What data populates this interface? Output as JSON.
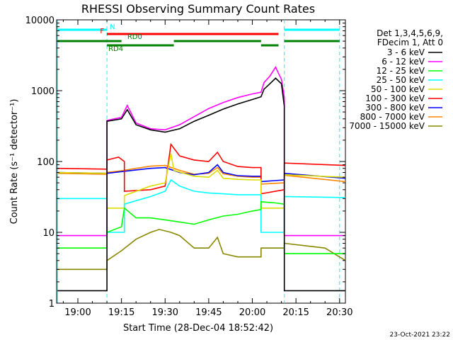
{
  "chart_data": {
    "type": "line",
    "title": "RHESSI Observing Summary Count Rates",
    "xlabel": "Start Time (28-Dec-04 18:52:42)",
    "ylabel": "Count Rate (s⁻¹ detector⁻¹)",
    "y_scale": "log",
    "ylim": [
      1,
      10000
    ],
    "xlim": [
      "18:52:42",
      "20:32:00"
    ],
    "x_ticks": [
      "19:00",
      "19:15",
      "19:30",
      "19:45",
      "20:00",
      "20:15",
      "20:30"
    ],
    "y_ticks": [
      "1",
      "10",
      "100",
      "1000",
      "10000"
    ],
    "grid": false,
    "legend_position": "right",
    "legend_header": [
      "Det 1,3,4,5,6,9,",
      "FDecim 1, Att 0"
    ],
    "date_stamp": "23-Oct-2021 23:22",
    "series": [
      {
        "name": "3 - 6 keV",
        "color": "#000000",
        "points": [
          [
            "18:53",
            1.5
          ],
          [
            "19:10",
            1.5
          ],
          [
            "19:10",
            370
          ],
          [
            "19:15",
            400
          ],
          [
            "19:17",
            540
          ],
          [
            "19:20",
            330
          ],
          [
            "19:25",
            280
          ],
          [
            "19:30",
            260
          ],
          [
            "19:35",
            290
          ],
          [
            "19:40",
            370
          ],
          [
            "19:45",
            450
          ],
          [
            "19:50",
            550
          ],
          [
            "19:55",
            650
          ],
          [
            "20:00",
            750
          ],
          [
            "20:03",
            820
          ],
          [
            "20:04",
            1050
          ],
          [
            "20:06",
            1250
          ],
          [
            "20:08",
            1500
          ],
          [
            "20:10",
            1250
          ],
          [
            "20:11",
            600
          ],
          [
            "20:11",
            1.5
          ],
          [
            "20:32",
            1.5
          ]
        ]
      },
      {
        "name": "6 - 12 keV",
        "color": "#ff00ff",
        "points": [
          [
            "18:53",
            9
          ],
          [
            "19:10",
            9
          ],
          [
            "19:10",
            380
          ],
          [
            "19:15",
            420
          ],
          [
            "19:17",
            620
          ],
          [
            "19:20",
            350
          ],
          [
            "19:25",
            290
          ],
          [
            "19:30",
            280
          ],
          [
            "19:35",
            330
          ],
          [
            "19:40",
            430
          ],
          [
            "19:45",
            560
          ],
          [
            "19:50",
            680
          ],
          [
            "19:55",
            800
          ],
          [
            "20:00",
            900
          ],
          [
            "20:03",
            950
          ],
          [
            "20:04",
            1300
          ],
          [
            "20:06",
            1600
          ],
          [
            "20:08",
            2150
          ],
          [
            "20:09",
            1750
          ],
          [
            "20:10",
            1450
          ],
          [
            "20:11",
            800
          ],
          [
            "20:11",
            9
          ],
          [
            "20:32",
            9
          ]
        ]
      },
      {
        "name": "12 - 25 keV",
        "color": "#00ff00",
        "points": [
          [
            "18:53",
            6
          ],
          [
            "19:10",
            6
          ],
          [
            "19:10",
            10
          ],
          [
            "19:15",
            12
          ],
          [
            "19:16",
            22
          ],
          [
            "19:20",
            16
          ],
          [
            "19:25",
            16
          ],
          [
            "19:30",
            15
          ],
          [
            "19:35",
            14
          ],
          [
            "19:40",
            13
          ],
          [
            "19:45",
            15
          ],
          [
            "19:50",
            17
          ],
          [
            "19:55",
            18
          ],
          [
            "20:00",
            20
          ],
          [
            "20:03",
            21
          ],
          [
            "20:03",
            27
          ],
          [
            "20:08",
            26
          ],
          [
            "20:11",
            25
          ],
          [
            "20:11",
            5
          ],
          [
            "20:32",
            5
          ]
        ]
      },
      {
        "name": "25 - 50 keV",
        "color": "#00ffff",
        "points": [
          [
            "18:53",
            30
          ],
          [
            "19:10",
            30
          ],
          [
            "19:10",
            10
          ],
          [
            "19:16",
            10
          ],
          [
            "19:16",
            25
          ],
          [
            "19:20",
            28
          ],
          [
            "19:25",
            32
          ],
          [
            "19:30",
            38
          ],
          [
            "19:32",
            55
          ],
          [
            "19:35",
            45
          ],
          [
            "19:40",
            38
          ],
          [
            "19:45",
            36
          ],
          [
            "19:50",
            35
          ],
          [
            "19:55",
            34
          ],
          [
            "20:00",
            34
          ],
          [
            "20:03",
            34
          ],
          [
            "20:03",
            10
          ],
          [
            "20:11",
            10
          ],
          [
            "20:11",
            32
          ],
          [
            "20:32",
            31
          ]
        ]
      },
      {
        "name": "50 - 100 keV",
        "color": "#dddd00",
        "points": [
          [
            "18:53",
            70
          ],
          [
            "19:10",
            68
          ],
          [
            "19:10",
            22
          ],
          [
            "19:16",
            22
          ],
          [
            "19:16",
            33
          ],
          [
            "19:25",
            45
          ],
          [
            "19:30",
            50
          ],
          [
            "19:32",
            130
          ],
          [
            "19:33",
            75
          ],
          [
            "19:40",
            62
          ],
          [
            "19:45",
            60
          ],
          [
            "19:48",
            75
          ],
          [
            "19:50",
            58
          ],
          [
            "19:55",
            56
          ],
          [
            "20:00",
            55
          ],
          [
            "20:03",
            55
          ],
          [
            "20:03",
            22
          ],
          [
            "20:11",
            22
          ],
          [
            "20:11",
            65
          ],
          [
            "20:32",
            60
          ]
        ]
      },
      {
        "name": "100 - 300 keV",
        "color": "#ff0000",
        "points": [
          [
            "18:53",
            80
          ],
          [
            "19:10",
            78
          ],
          [
            "19:10",
            105
          ],
          [
            "19:14",
            115
          ],
          [
            "19:16",
            100
          ],
          [
            "19:16",
            38
          ],
          [
            "19:25",
            40
          ],
          [
            "19:30",
            45
          ],
          [
            "19:32",
            175
          ],
          [
            "19:35",
            120
          ],
          [
            "19:40",
            105
          ],
          [
            "19:45",
            100
          ],
          [
            "19:48",
            135
          ],
          [
            "19:50",
            100
          ],
          [
            "19:55",
            85
          ],
          [
            "20:00",
            82
          ],
          [
            "20:03",
            82
          ],
          [
            "20:03",
            35
          ],
          [
            "20:11",
            40
          ],
          [
            "20:11",
            95
          ],
          [
            "20:32",
            88
          ]
        ]
      },
      {
        "name": "300 - 800 keV",
        "color": "#0000ff",
        "points": [
          [
            "18:53",
            70
          ],
          [
            "19:10",
            68
          ],
          [
            "19:10",
            68
          ],
          [
            "19:15",
            72
          ],
          [
            "19:20",
            76
          ],
          [
            "19:25",
            80
          ],
          [
            "19:30",
            82
          ],
          [
            "19:35",
            70
          ],
          [
            "19:40",
            65
          ],
          [
            "19:45",
            70
          ],
          [
            "19:48",
            90
          ],
          [
            "19:50",
            70
          ],
          [
            "19:55",
            63
          ],
          [
            "20:00",
            62
          ],
          [
            "20:03",
            62
          ],
          [
            "20:03",
            52
          ],
          [
            "20:11",
            55
          ],
          [
            "20:11",
            68
          ],
          [
            "20:32",
            58
          ]
        ]
      },
      {
        "name": "800 - 7000 keV",
        "color": "#ff8800",
        "points": [
          [
            "18:53",
            68
          ],
          [
            "19:10",
            66
          ],
          [
            "19:10",
            70
          ],
          [
            "19:15",
            74
          ],
          [
            "19:20",
            80
          ],
          [
            "19:25",
            86
          ],
          [
            "19:30",
            88
          ],
          [
            "19:35",
            75
          ],
          [
            "19:40",
            66
          ],
          [
            "19:45",
            68
          ],
          [
            "19:48",
            82
          ],
          [
            "19:50",
            67
          ],
          [
            "19:55",
            62
          ],
          [
            "20:00",
            60
          ],
          [
            "20:03",
            60
          ],
          [
            "20:03",
            48
          ],
          [
            "20:11",
            50
          ],
          [
            "20:11",
            64
          ],
          [
            "20:32",
            52
          ]
        ]
      },
      {
        "name": "7000 - 15000 keV",
        "color": "#888800",
        "points": [
          [
            "18:53",
            3
          ],
          [
            "19:10",
            3
          ],
          [
            "19:10",
            4
          ],
          [
            "19:15",
            5.5
          ],
          [
            "19:20",
            8
          ],
          [
            "19:25",
            10
          ],
          [
            "19:28",
            11
          ],
          [
            "19:32",
            10
          ],
          [
            "19:35",
            9
          ],
          [
            "19:40",
            6
          ],
          [
            "19:45",
            6
          ],
          [
            "19:48",
            8.5
          ],
          [
            "19:50",
            5
          ],
          [
            "19:55",
            4.5
          ],
          [
            "20:00",
            4.5
          ],
          [
            "20:03",
            4.5
          ],
          [
            "20:03",
            6
          ],
          [
            "20:11",
            6
          ],
          [
            "20:11",
            7
          ],
          [
            "20:25",
            6
          ],
          [
            "20:32",
            4
          ]
        ]
      }
    ],
    "flag_bars": [
      {
        "label": "N",
        "color": "#00ffff",
        "segments": [
          [
            "18:53",
            "19:10"
          ],
          [
            "20:11",
            "20:30"
          ]
        ]
      },
      {
        "label": "F",
        "color": "#ff0000",
        "segments": [
          [
            "19:10",
            "20:09"
          ]
        ]
      },
      {
        "label": "RD0",
        "color": "#008000",
        "segments": [
          [
            "18:53",
            "19:15"
          ],
          [
            "19:33",
            "20:03"
          ],
          [
            "20:11",
            "20:30"
          ]
        ]
      },
      {
        "label": "RD4",
        "color": "#008000",
        "segments": [
          [
            "19:10",
            "19:33"
          ],
          [
            "20:03",
            "20:09"
          ]
        ]
      }
    ],
    "boundaries": {
      "color": "#00ffff",
      "times": [
        "18:53",
        "19:10",
        "20:11",
        "20:30"
      ]
    }
  }
}
